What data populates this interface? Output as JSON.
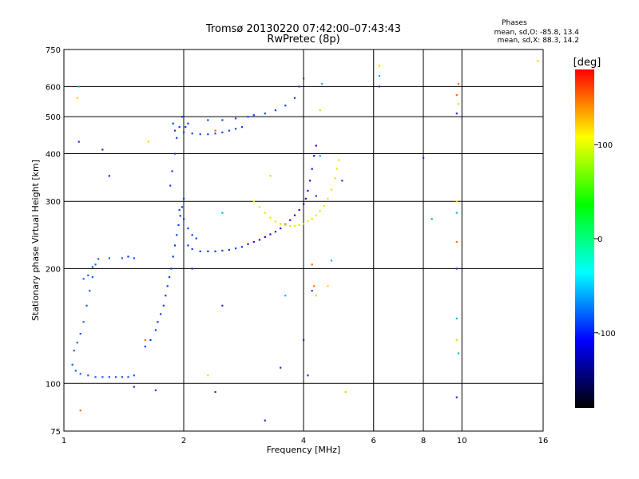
{
  "chart_data": {
    "type": "scatter",
    "title": "Tromsø 20130220 07:42:00–07:43:43",
    "subtitle": "RwPretec (8p)",
    "xlabel": "Frequency [MHz]",
    "ylabel": "Stationary phase Virtual Height [km]",
    "x_scale": "log",
    "y_scale": "log",
    "xlim": [
      1,
      16
    ],
    "ylim": [
      75,
      750
    ],
    "x_ticks": [
      1,
      2,
      4,
      6,
      8,
      10,
      16
    ],
    "y_ticks": [
      75,
      100,
      200,
      300,
      400,
      500,
      600,
      750
    ],
    "grid": true,
    "stats": {
      "heading": "Phases",
      "line_o": "mean, sd,O: -85.8, 13.4",
      "line_x": "mean, sd,X:  88.3, 14.2"
    },
    "colorbar": {
      "label": "[deg]",
      "range": [
        -180,
        180
      ],
      "ticks": [
        100,
        0,
        -100
      ],
      "colors": [
        "#ff0000",
        "#ffff00",
        "#00ff00",
        "#00ffff",
        "#0000ff",
        "#000000"
      ]
    },
    "series": [
      {
        "phase_color": "#1a5cff",
        "points": [
          [
            1.05,
            112
          ],
          [
            1.07,
            108
          ],
          [
            1.1,
            106
          ],
          [
            1.15,
            105
          ],
          [
            1.2,
            104
          ],
          [
            1.25,
            104
          ],
          [
            1.3,
            104
          ],
          [
            1.35,
            104
          ],
          [
            1.4,
            104
          ],
          [
            1.45,
            104
          ],
          [
            1.5,
            105
          ],
          [
            1.06,
            122
          ],
          [
            1.08,
            128
          ],
          [
            1.1,
            135
          ],
          [
            1.12,
            145
          ],
          [
            1.14,
            160
          ],
          [
            1.16,
            175
          ],
          [
            1.18,
            190
          ],
          [
            1.2,
            205
          ],
          [
            1.22,
            212
          ],
          [
            1.3,
            213
          ],
          [
            1.4,
            213
          ],
          [
            1.5,
            213
          ],
          [
            1.12,
            188
          ],
          [
            1.15,
            192
          ],
          [
            1.18,
            202
          ]
        ]
      },
      {
        "phase_color": "#0a3cf0",
        "points": [
          [
            1.6,
            125
          ],
          [
            1.65,
            130
          ],
          [
            1.7,
            138
          ],
          [
            1.72,
            145
          ],
          [
            1.75,
            152
          ],
          [
            1.78,
            160
          ],
          [
            1.8,
            170
          ],
          [
            1.82,
            180
          ],
          [
            1.84,
            190
          ],
          [
            1.86,
            200
          ],
          [
            1.88,
            215
          ],
          [
            1.9,
            230
          ],
          [
            1.92,
            245
          ],
          [
            1.94,
            260
          ],
          [
            1.96,
            275
          ],
          [
            1.98,
            290
          ],
          [
            2.0,
            305
          ],
          [
            1.85,
            330
          ],
          [
            1.87,
            360
          ],
          [
            1.9,
            400
          ],
          [
            1.92,
            440
          ],
          [
            1.95,
            470
          ],
          [
            1.98,
            500
          ],
          [
            1.88,
            480
          ],
          [
            1.9,
            460
          ],
          [
            2.02,
            470
          ],
          [
            2.05,
            480
          ],
          [
            1.95,
            285
          ],
          [
            2.0,
            270
          ],
          [
            2.05,
            255
          ],
          [
            2.1,
            245
          ],
          [
            2.15,
            240
          ],
          [
            2.05,
            230
          ],
          [
            2.1,
            225
          ],
          [
            2.2,
            222
          ],
          [
            2.3,
            222
          ],
          [
            2.4,
            222
          ],
          [
            2.5,
            223
          ],
          [
            2.6,
            224
          ],
          [
            2.7,
            226
          ],
          [
            2.8,
            228
          ]
        ]
      },
      {
        "phase_color": "#1246e8",
        "points": [
          [
            2.0,
            455
          ],
          [
            2.1,
            452
          ],
          [
            2.2,
            450
          ],
          [
            2.3,
            450
          ],
          [
            2.4,
            452
          ],
          [
            2.5,
            455
          ],
          [
            2.6,
            460
          ],
          [
            2.7,
            465
          ],
          [
            2.8,
            470
          ],
          [
            2.3,
            490
          ],
          [
            2.5,
            490
          ],
          [
            2.7,
            495
          ],
          [
            2.9,
            500
          ],
          [
            3.0,
            505
          ],
          [
            3.2,
            510
          ],
          [
            3.4,
            520
          ],
          [
            3.6,
            535
          ],
          [
            3.8,
            560
          ],
          [
            3.9,
            600
          ],
          [
            4.0,
            630
          ]
        ]
      },
      {
        "phase_color": "#3b00c8",
        "points": [
          [
            2.9,
            232
          ],
          [
            3.0,
            235
          ],
          [
            3.1,
            238
          ],
          [
            3.2,
            242
          ],
          [
            3.3,
            246
          ],
          [
            3.4,
            250
          ],
          [
            3.5,
            255
          ],
          [
            3.6,
            261
          ],
          [
            3.7,
            268
          ],
          [
            3.8,
            276
          ],
          [
            3.9,
            285
          ],
          [
            4.0,
            295
          ],
          [
            4.05,
            305
          ],
          [
            4.1,
            320
          ],
          [
            4.15,
            340
          ],
          [
            4.2,
            365
          ],
          [
            4.25,
            395
          ],
          [
            4.3,
            420
          ]
        ]
      },
      {
        "phase_color": "#e8e800",
        "points": [
          [
            3.0,
            300
          ],
          [
            3.1,
            290
          ],
          [
            3.2,
            280
          ],
          [
            3.3,
            272
          ],
          [
            3.4,
            266
          ],
          [
            3.5,
            262
          ],
          [
            3.6,
            260
          ],
          [
            3.7,
            259
          ],
          [
            3.8,
            259
          ],
          [
            3.9,
            260
          ],
          [
            4.0,
            262
          ],
          [
            4.1,
            266
          ],
          [
            4.2,
            270
          ],
          [
            4.3,
            276
          ],
          [
            4.4,
            283
          ],
          [
            4.5,
            292
          ],
          [
            4.6,
            305
          ],
          [
            4.7,
            322
          ],
          [
            4.8,
            345
          ],
          [
            4.85,
            365
          ],
          [
            4.9,
            385
          ]
        ]
      },
      {
        "phase_color": "#ffd000",
        "points": [
          [
            1.08,
            560
          ],
          [
            1.63,
            430
          ],
          [
            2.3,
            105
          ],
          [
            3.3,
            350
          ],
          [
            4.3,
            170
          ],
          [
            4.4,
            520
          ],
          [
            4.6,
            180
          ],
          [
            5.1,
            95
          ],
          [
            6.2,
            680
          ],
          [
            9.7,
            300
          ],
          [
            9.7,
            130
          ],
          [
            9.8,
            540
          ],
          [
            15.5,
            700
          ]
        ]
      },
      {
        "phase_color": "#ff6a00",
        "points": [
          [
            1.1,
            85
          ],
          [
            1.6,
            130
          ],
          [
            2.4,
            460
          ],
          [
            4.2,
            205
          ],
          [
            4.25,
            180
          ],
          [
            9.7,
            570
          ],
          [
            9.7,
            235
          ],
          [
            9.8,
            610
          ]
        ]
      },
      {
        "phase_color": "#00b8e8",
        "points": [
          [
            1.09,
            600
          ],
          [
            2.5,
            280
          ],
          [
            3.6,
            170
          ],
          [
            4.45,
            610
          ],
          [
            6.2,
            640
          ],
          [
            8.4,
            270
          ],
          [
            9.7,
            280
          ],
          [
            9.7,
            148
          ],
          [
            9.8,
            120
          ],
          [
            4.4,
            395
          ],
          [
            4.7,
            210
          ]
        ]
      },
      {
        "phase_color": "#2030d0",
        "points": [
          [
            1.09,
            430
          ],
          [
            1.25,
            410
          ],
          [
            1.3,
            350
          ],
          [
            1.45,
            215
          ],
          [
            1.5,
            98
          ],
          [
            1.7,
            96
          ],
          [
            2.4,
            95
          ],
          [
            2.1,
            200
          ],
          [
            2.5,
            160
          ],
          [
            3.2,
            80
          ],
          [
            3.5,
            110
          ],
          [
            4.0,
            130
          ],
          [
            4.1,
            105
          ],
          [
            4.2,
            175
          ],
          [
            4.3,
            310
          ],
          [
            5.0,
            340
          ],
          [
            6.2,
            600
          ],
          [
            8.0,
            390
          ],
          [
            9.7,
            510
          ],
          [
            9.7,
            92
          ],
          [
            9.7,
            200
          ]
        ]
      }
    ]
  }
}
